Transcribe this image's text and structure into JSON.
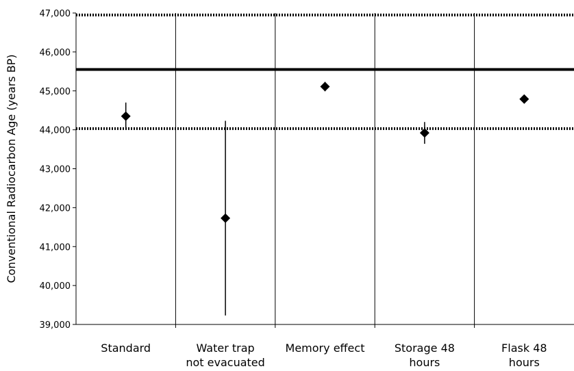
{
  "chart_data": {
    "type": "scatter",
    "title": "",
    "xlabel": "",
    "ylabel": "Conventional Radiocarbon Age (years BP)",
    "ylim": [
      39000,
      47000
    ],
    "yticks": [
      39000,
      40000,
      41000,
      42000,
      43000,
      44000,
      45000,
      46000,
      47000
    ],
    "ytick_labels": [
      "39,000",
      "40,000",
      "41,000",
      "42,000",
      "43,000",
      "44,000",
      "45,000",
      "46,000",
      "47,000"
    ],
    "categories": [
      [
        "Standard"
      ],
      [
        "Water trap",
        "not evacuated"
      ],
      [
        "Memory effect"
      ],
      [
        "Storage 48",
        "hours"
      ],
      [
        "Flask 48",
        "hours"
      ]
    ],
    "series": [
      {
        "marker": "diamond",
        "values": [
          44350,
          41730,
          45110,
          43920,
          44790
        ],
        "error_low": [
          44000,
          39230,
          44990,
          43640,
          44700
        ],
        "error_high": [
          44700,
          44230,
          45230,
          44200,
          44880
        ]
      }
    ],
    "reference_lines": [
      {
        "style": "solid",
        "value": 45550
      },
      {
        "style": "dotted",
        "value": 46950
      },
      {
        "style": "dotted",
        "value": 44030
      }
    ],
    "grid": {
      "vertical_category_separators": true,
      "horizontal": false
    },
    "colors": {
      "marker": "#000000",
      "lines": "#000000"
    }
  }
}
